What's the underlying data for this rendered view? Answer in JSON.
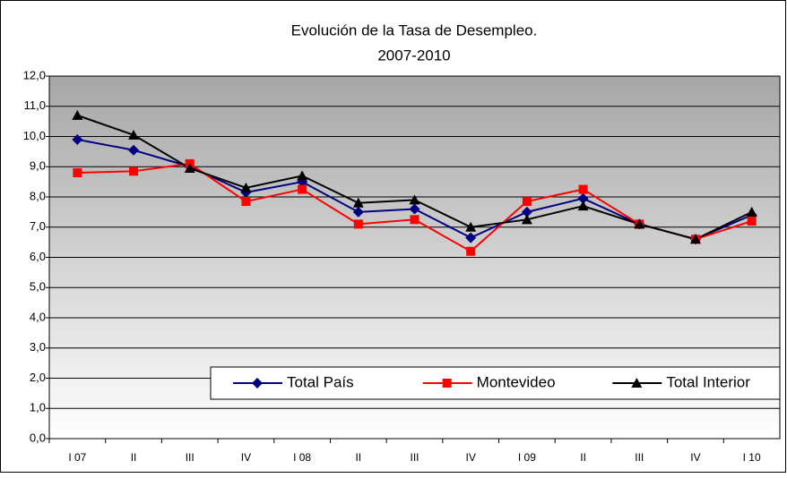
{
  "chart_data": {
    "type": "line",
    "title": "Evolución de la Tasa de Desempleo.",
    "subtitle": "2007-2010",
    "categories": [
      "I 07",
      "II",
      "III",
      "IV",
      "I 08",
      "II",
      "III",
      "IV",
      "I 09",
      "II",
      "III",
      "IV",
      "I 10"
    ],
    "series": [
      {
        "name": "Total País",
        "color": "#000080",
        "marker": "diamond",
        "values": [
          9.9,
          9.55,
          9.0,
          8.15,
          8.5,
          7.5,
          7.6,
          6.65,
          7.5,
          7.95,
          7.1,
          6.6,
          7.4
        ]
      },
      {
        "name": "Montevideo",
        "color": "#ff0000",
        "marker": "square",
        "values": [
          8.8,
          8.85,
          9.1,
          7.85,
          8.25,
          7.1,
          7.25,
          6.2,
          7.85,
          8.25,
          7.1,
          6.6,
          7.2
        ]
      },
      {
        "name": "Total Interior",
        "color": "#000000",
        "marker": "triangle",
        "values": [
          10.7,
          10.05,
          8.95,
          8.3,
          8.7,
          7.8,
          7.9,
          7.0,
          7.25,
          7.7,
          7.1,
          6.6,
          7.5
        ]
      }
    ],
    "ylim": [
      0,
      12
    ],
    "yticks": [
      {
        "value": 0,
        "label": "0,0"
      },
      {
        "value": 1,
        "label": "1,0"
      },
      {
        "value": 2,
        "label": "2,0"
      },
      {
        "value": 3,
        "label": "3,0"
      },
      {
        "value": 4,
        "label": "4,0"
      },
      {
        "value": 5,
        "label": "5,0"
      },
      {
        "value": 6,
        "label": "6,0"
      },
      {
        "value": 7,
        "label": "7,0"
      },
      {
        "value": 8,
        "label": "8,0"
      },
      {
        "value": 9,
        "label": "9,0"
      },
      {
        "value": 10,
        "label": "10,0"
      },
      {
        "value": 11,
        "label": "11,0"
      },
      {
        "value": 12,
        "label": "12,0"
      }
    ],
    "grid": true
  }
}
